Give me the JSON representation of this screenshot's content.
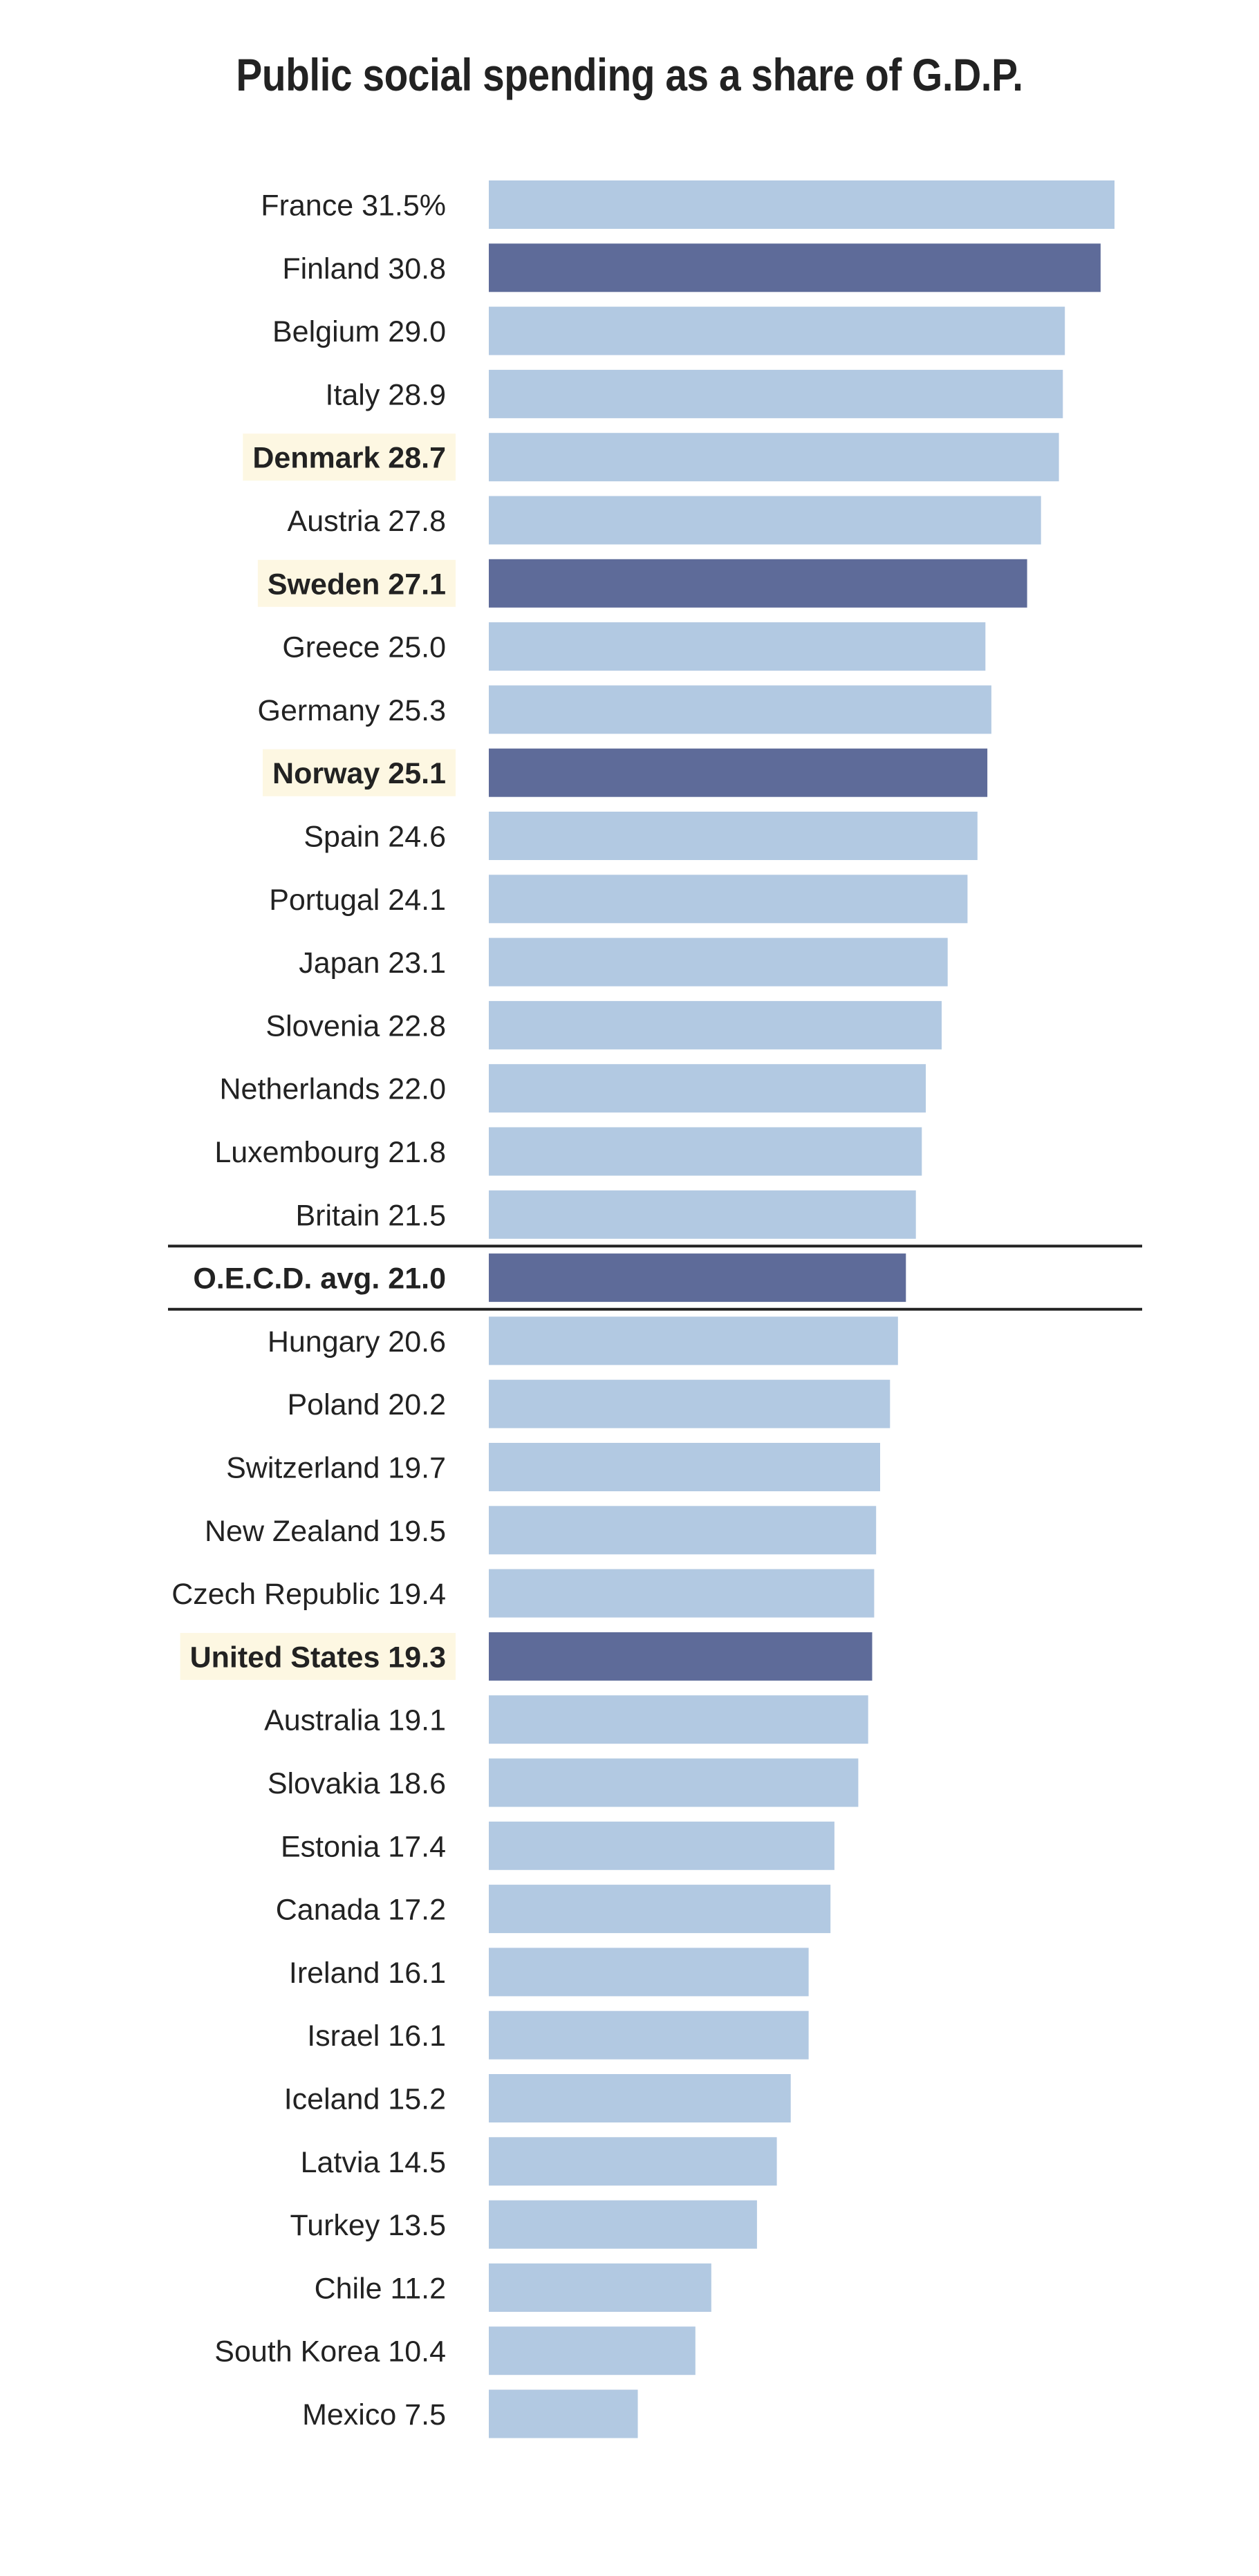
{
  "chart_data": {
    "type": "bar",
    "orientation": "horizontal",
    "title": "Public social spending as a share of G.D.P.",
    "xlabel": "",
    "ylabel": "",
    "xlim": [
      0,
      31.5
    ],
    "grid": false,
    "legend": "none",
    "colors": {
      "default": "#b2c9e2",
      "highlight": "#5e6b99",
      "label_highlight_bg": "#fdf7e2",
      "text": "#222222",
      "divider": "#222222"
    },
    "items": [
      {
        "label": "France 31.5%",
        "category": "France",
        "value": 31.5,
        "bar": "light",
        "label_bg": false,
        "bold": false
      },
      {
        "label": "Finland 30.8",
        "category": "Finland",
        "value": 30.8,
        "bar": "dark",
        "label_bg": false,
        "bold": false
      },
      {
        "label": "Belgium 29.0",
        "category": "Belgium",
        "value": 29.0,
        "bar": "light",
        "label_bg": false,
        "bold": false
      },
      {
        "label": "Italy 28.9",
        "category": "Italy",
        "value": 28.9,
        "bar": "light",
        "label_bg": false,
        "bold": false
      },
      {
        "label": "Denmark 28.7",
        "category": "Denmark",
        "value": 28.7,
        "bar": "light",
        "label_bg": true,
        "bold": true
      },
      {
        "label": "Austria 27.8",
        "category": "Austria",
        "value": 27.8,
        "bar": "light",
        "label_bg": false,
        "bold": false
      },
      {
        "label": "Sweden 27.1",
        "category": "Sweden",
        "value": 27.1,
        "bar": "dark",
        "label_bg": true,
        "bold": true
      },
      {
        "label": "Greece 25.0",
        "category": "Greece",
        "value": 25.0,
        "bar": "light",
        "label_bg": false,
        "bold": false
      },
      {
        "label": "Germany 25.3",
        "category": "Germany",
        "value": 25.3,
        "bar": "light",
        "label_bg": false,
        "bold": false
      },
      {
        "label": "Norway 25.1",
        "category": "Norway",
        "value": 25.1,
        "bar": "dark",
        "label_bg": true,
        "bold": true
      },
      {
        "label": "Spain 24.6",
        "category": "Spain",
        "value": 24.6,
        "bar": "light",
        "label_bg": false,
        "bold": false
      },
      {
        "label": "Portugal 24.1",
        "category": "Portugal",
        "value": 24.1,
        "bar": "light",
        "label_bg": false,
        "bold": false
      },
      {
        "label": "Japan 23.1",
        "category": "Japan",
        "value": 23.1,
        "bar": "light",
        "label_bg": false,
        "bold": false
      },
      {
        "label": "Slovenia 22.8",
        "category": "Slovenia",
        "value": 22.8,
        "bar": "light",
        "label_bg": false,
        "bold": false
      },
      {
        "label": "Netherlands 22.0",
        "category": "Netherlands",
        "value": 22.0,
        "bar": "light",
        "label_bg": false,
        "bold": false
      },
      {
        "label": "Luxembourg 21.8",
        "category": "Luxembourg",
        "value": 21.8,
        "bar": "light",
        "label_bg": false,
        "bold": false
      },
      {
        "label": "Britain 21.5",
        "category": "Britain",
        "value": 21.5,
        "bar": "light",
        "label_bg": false,
        "bold": false
      },
      {
        "label": "O.E.C.D. avg. 21.0",
        "category": "O.E.C.D. avg.",
        "value": 21.0,
        "bar": "dark",
        "label_bg": false,
        "bold": true,
        "divider": true
      },
      {
        "label": "Hungary 20.6",
        "category": "Hungary",
        "value": 20.6,
        "bar": "light",
        "label_bg": false,
        "bold": false
      },
      {
        "label": "Poland 20.2",
        "category": "Poland",
        "value": 20.2,
        "bar": "light",
        "label_bg": false,
        "bold": false
      },
      {
        "label": "Switzerland 19.7",
        "category": "Switzerland",
        "value": 19.7,
        "bar": "light",
        "label_bg": false,
        "bold": false
      },
      {
        "label": "New Zealand 19.5",
        "category": "New Zealand",
        "value": 19.5,
        "bar": "light",
        "label_bg": false,
        "bold": false
      },
      {
        "label": "Czech Republic 19.4",
        "category": "Czech Republic",
        "value": 19.4,
        "bar": "light",
        "label_bg": false,
        "bold": false
      },
      {
        "label": "United States 19.3",
        "category": "United States",
        "value": 19.3,
        "bar": "dark",
        "label_bg": true,
        "bold": true
      },
      {
        "label": "Australia 19.1",
        "category": "Australia",
        "value": 19.1,
        "bar": "light",
        "label_bg": false,
        "bold": false
      },
      {
        "label": "Slovakia 18.6",
        "category": "Slovakia",
        "value": 18.6,
        "bar": "light",
        "label_bg": false,
        "bold": false
      },
      {
        "label": "Estonia 17.4",
        "category": "Estonia",
        "value": 17.4,
        "bar": "light",
        "label_bg": false,
        "bold": false
      },
      {
        "label": "Canada 17.2",
        "category": "Canada",
        "value": 17.2,
        "bar": "light",
        "label_bg": false,
        "bold": false
      },
      {
        "label": "Ireland 16.1",
        "category": "Ireland",
        "value": 16.1,
        "bar": "light",
        "label_bg": false,
        "bold": false
      },
      {
        "label": "Israel 16.1",
        "category": "Israel",
        "value": 16.1,
        "bar": "light",
        "label_bg": false,
        "bold": false
      },
      {
        "label": "Iceland 15.2",
        "category": "Iceland",
        "value": 15.2,
        "bar": "light",
        "label_bg": false,
        "bold": false
      },
      {
        "label": "Latvia 14.5",
        "category": "Latvia",
        "value": 14.5,
        "bar": "light",
        "label_bg": false,
        "bold": false
      },
      {
        "label": "Turkey 13.5",
        "category": "Turkey",
        "value": 13.5,
        "bar": "light",
        "label_bg": false,
        "bold": false
      },
      {
        "label": "Chile 11.2",
        "category": "Chile",
        "value": 11.2,
        "bar": "light",
        "label_bg": false,
        "bold": false
      },
      {
        "label": "South Korea 10.4",
        "category": "South Korea",
        "value": 10.4,
        "bar": "light",
        "label_bg": false,
        "bold": false
      },
      {
        "label": "Mexico 7.5",
        "category": "Mexico",
        "value": 7.5,
        "bar": "light",
        "label_bg": false,
        "bold": false
      }
    ]
  }
}
